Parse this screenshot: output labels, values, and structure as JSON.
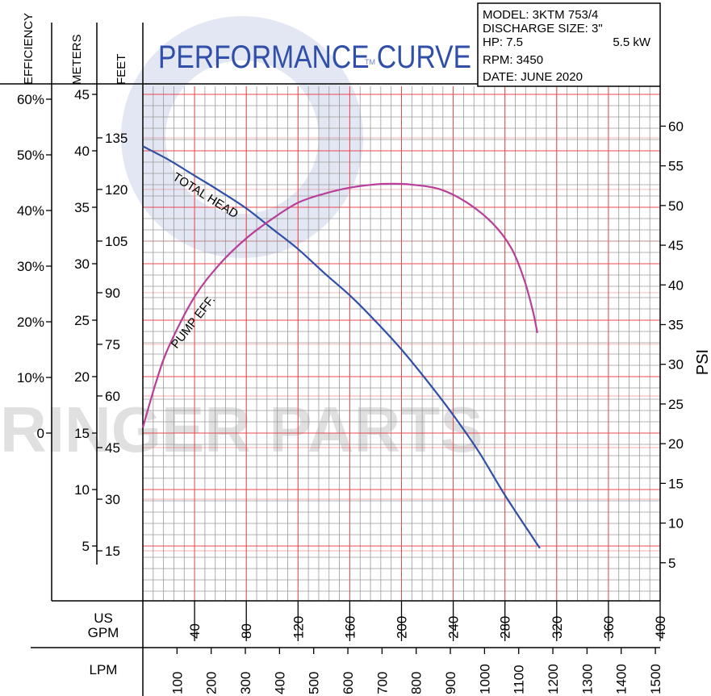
{
  "chart_data": {
    "type": "line",
    "title": "PERFORMANCE CURVE",
    "trademark": "TM",
    "info": {
      "model": "MODEL: 3KTM 753/4",
      "discharge": "DISCHARGE SIZE: 3\"",
      "hp": "HP: 7.5",
      "kw": "5.5 kW",
      "rpm": "RPM: 3450",
      "date": "DATE: JUNE 2020"
    },
    "axis_labels": {
      "efficiency": "EFFICIENCY",
      "meters": "METERS",
      "feet": "FEET",
      "psi": "PSI",
      "usgpm": [
        "US",
        "GPM"
      ],
      "lpm": "LPM"
    },
    "x_gpm": {
      "min": 0,
      "max": 400,
      "ticks": [
        "40",
        "80",
        "120",
        "160",
        "200",
        "240",
        "280",
        "320",
        "360",
        "400"
      ],
      "tick_values": [
        40,
        80,
        120,
        160,
        200,
        240,
        280,
        320,
        360,
        400
      ]
    },
    "x_lpm": {
      "ticks": [
        "100",
        "200",
        "300",
        "400",
        "500",
        "600",
        "700",
        "800",
        "900",
        "1000",
        "1100",
        "1200",
        "1300",
        "1400",
        "1500"
      ],
      "tick_values": [
        100,
        200,
        300,
        400,
        500,
        600,
        700,
        800,
        900,
        1000,
        1100,
        1200,
        1300,
        1400,
        1500
      ]
    },
    "y_meters": {
      "min": 0,
      "max": 45,
      "ticks": [
        "5",
        "10",
        "15",
        "20",
        "25",
        "30",
        "35",
        "40",
        "45"
      ],
      "tick_values": [
        5,
        10,
        15,
        20,
        25,
        30,
        35,
        40,
        45
      ]
    },
    "y_feet": {
      "ticks": [
        "15",
        "30",
        "45",
        "60",
        "75",
        "90",
        "105",
        "120",
        "135"
      ],
      "tick_values": [
        15,
        30,
        45,
        60,
        75,
        90,
        105,
        120,
        135
      ]
    },
    "y_efficiency": {
      "ticks": [
        "0",
        "10%",
        "20%",
        "30%",
        "40%",
        "50%",
        "60%"
      ],
      "tick_values": [
        0,
        10,
        20,
        30,
        40,
        50,
        60
      ]
    },
    "y_psi": {
      "ticks": [
        "5",
        "10",
        "15",
        "20",
        "25",
        "30",
        "35",
        "40",
        "45",
        "50",
        "55",
        "60"
      ],
      "tick_values": [
        5,
        10,
        15,
        20,
        25,
        30,
        35,
        40,
        45,
        50,
        55,
        60
      ]
    },
    "series": [
      {
        "name": "TOTAL HEAD",
        "color": "#2f4fa8",
        "axis": "meters",
        "points": [
          [
            0,
            40.4
          ],
          [
            20,
            39.2
          ],
          [
            40,
            37.8
          ],
          [
            60,
            36.4
          ],
          [
            80,
            34.9
          ],
          [
            100,
            33.1
          ],
          [
            120,
            31.3
          ],
          [
            140,
            29.2
          ],
          [
            160,
            27.2
          ],
          [
            180,
            24.9
          ],
          [
            200,
            22.4
          ],
          [
            220,
            19.6
          ],
          [
            240,
            16.6
          ],
          [
            260,
            13.3
          ],
          [
            280,
            9.5
          ],
          [
            300,
            6.0
          ],
          [
            307,
            4.8
          ]
        ]
      },
      {
        "name": "PUMP EFF.",
        "color": "#b83e9a",
        "axis": "efficiency",
        "points": [
          [
            0,
            1
          ],
          [
            10,
            9
          ],
          [
            20,
            15.5
          ],
          [
            40,
            24.5
          ],
          [
            60,
            30.5
          ],
          [
            80,
            35
          ],
          [
            100,
            38.5
          ],
          [
            120,
            41.4
          ],
          [
            140,
            43
          ],
          [
            160,
            44.1
          ],
          [
            180,
            44.7
          ],
          [
            195,
            44.8
          ],
          [
            210,
            44.6
          ],
          [
            230,
            43.8
          ],
          [
            250,
            41.5
          ],
          [
            270,
            37.8
          ],
          [
            285,
            33.2
          ],
          [
            295,
            27.5
          ],
          [
            302,
            21.5
          ],
          [
            305,
            18
          ]
        ]
      }
    ],
    "grid": true,
    "watermark": "RINGER PARTS"
  }
}
